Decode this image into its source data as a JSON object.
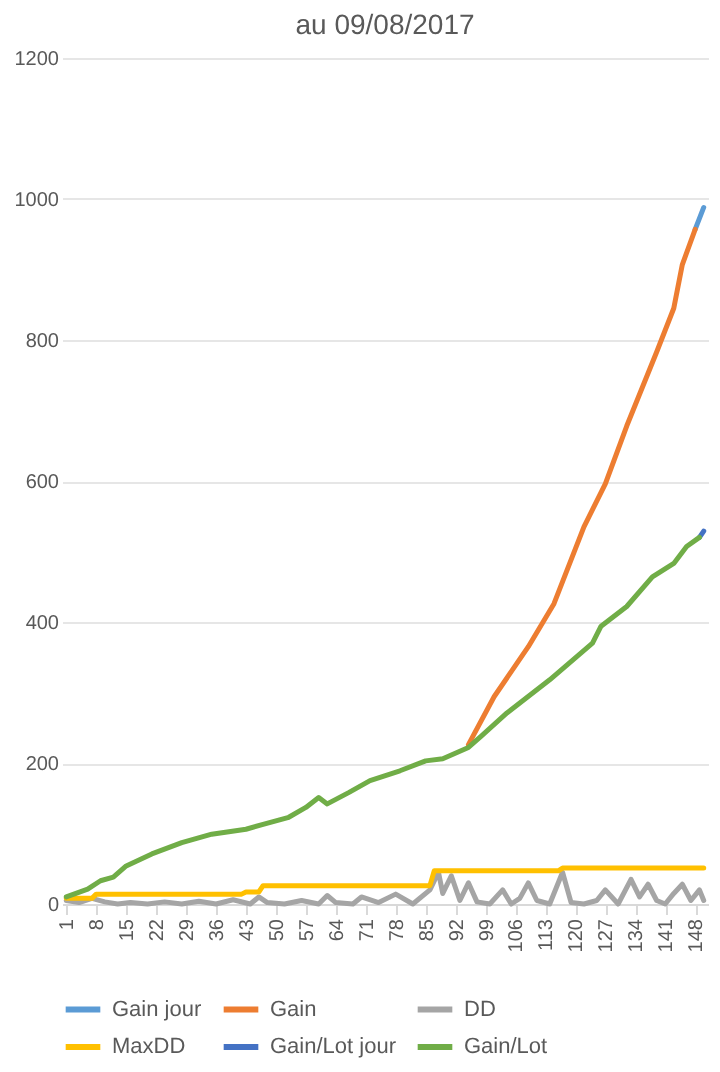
{
  "chart_data": {
    "type": "line",
    "title": "au 09/08/2017",
    "xlim": [
      0,
      151
    ],
    "xticks": [
      1,
      8,
      15,
      22,
      29,
      36,
      43,
      50,
      57,
      64,
      71,
      78,
      85,
      92,
      99,
      106,
      113,
      120,
      127,
      134,
      141,
      148
    ],
    "ylim": [
      0,
      1200
    ],
    "yticks": [
      0,
      200,
      400,
      600,
      800,
      1000,
      1200
    ],
    "grid": "y",
    "legend": "bottom",
    "series": [
      {
        "name": "Gain jour",
        "color": "#5b9bd5",
        "x": [
          148,
          150
        ],
        "values": [
          957,
          988
        ]
      },
      {
        "name": "Gain",
        "color": "#ed7d31",
        "x": [
          95,
          101,
          109,
          115,
          122,
          127,
          132,
          139,
          143,
          145,
          148
        ],
        "values": [
          226,
          294,
          365,
          426,
          535,
          596,
          678,
          783,
          845,
          907,
          957
        ]
      },
      {
        "name": "DD",
        "color": "#a5a5a5",
        "x": [
          1,
          4,
          7,
          10,
          13,
          16,
          20,
          24,
          28,
          32,
          36,
          40,
          44,
          46,
          48,
          52,
          56,
          60,
          62,
          64,
          68,
          70,
          74,
          78,
          82,
          86,
          88,
          89,
          91,
          93,
          95,
          97,
          100,
          103,
          105,
          107,
          109,
          111,
          114,
          117,
          119,
          122,
          125,
          127,
          130,
          133,
          135,
          137,
          139,
          141,
          143,
          145,
          147,
          149,
          150
        ],
        "values": [
          5,
          2,
          8,
          3,
          0,
          2,
          0,
          3,
          0,
          4,
          0,
          6,
          0,
          10,
          2,
          0,
          5,
          0,
          12,
          2,
          0,
          10,
          2,
          14,
          0,
          20,
          45,
          15,
          40,
          5,
          30,
          3,
          0,
          20,
          0,
          8,
          30,
          5,
          0,
          45,
          2,
          0,
          5,
          20,
          0,
          35,
          10,
          28,
          5,
          0,
          15,
          28,
          5,
          20,
          5
        ]
      },
      {
        "name": "MaxDD",
        "color": "#ffc000",
        "x": [
          1,
          7,
          8,
          42,
          43,
          46,
          47,
          86,
          87,
          116,
          117,
          150
        ],
        "values": [
          8,
          8,
          14,
          14,
          17,
          17,
          26,
          26,
          47,
          47,
          51,
          51
        ]
      },
      {
        "name": "Gain/Lot jour",
        "color": "#4472c4",
        "x": [
          149,
          150
        ],
        "values": [
          520,
          529
        ]
      },
      {
        "name": "Gain/Lot",
        "color": "#70ad47",
        "x": [
          1,
          6,
          9,
          12,
          15,
          21,
          28,
          35,
          43,
          47,
          53,
          57,
          60,
          62,
          67,
          72,
          79,
          85,
          89,
          95,
          98,
          104,
          114,
          124,
          126,
          132,
          138,
          143,
          146,
          149
        ],
        "values": [
          10,
          21,
          33,
          38,
          54,
          71,
          87,
          99,
          106,
          113,
          123,
          137,
          151,
          142,
          158,
          175,
          189,
          203,
          206,
          222,
          238,
          271,
          318,
          370,
          394,
          422,
          464,
          483,
          507,
          520
        ]
      }
    ]
  }
}
